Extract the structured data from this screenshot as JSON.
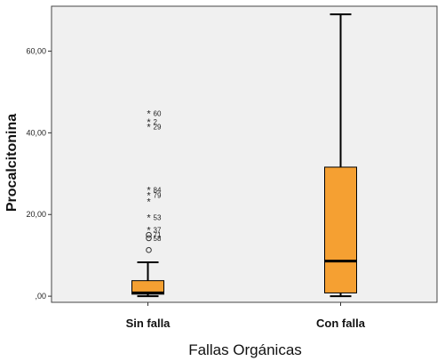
{
  "chart_data": {
    "type": "box",
    "xlabel": "Fallas Orgánicas",
    "ylabel": "Procalcitonina",
    "ylim": [
      -1.5,
      71
    ],
    "y_ticks": [
      {
        "value": 0,
        "label": ",00"
      },
      {
        "value": 20,
        "label": "20,00"
      },
      {
        "value": 40,
        "label": "40,00"
      },
      {
        "value": 60,
        "label": "60,00"
      }
    ],
    "box_color": "#f5a032",
    "plot_background": "#f0f0f0",
    "categories": [
      "Sin falla",
      "Con falla"
    ],
    "boxes": [
      {
        "category": "Sin falla",
        "whisker_low": 0.0,
        "q1": 0.5,
        "median": 0.8,
        "q3": 3.8,
        "whisker_high": 8.3,
        "outliers": [
          {
            "value": 11.3,
            "marker": "circle",
            "label": ""
          },
          {
            "value": 14.2,
            "marker": "circle",
            "label": "58"
          },
          {
            "value": 15.0,
            "marker": "circle",
            "label": "71"
          },
          {
            "value": 16.2,
            "marker": "star",
            "label": "37"
          },
          {
            "value": 19.3,
            "marker": "star",
            "label": "53"
          },
          {
            "value": 23.2,
            "marker": "star",
            "label": ""
          },
          {
            "value": 24.7,
            "marker": "star",
            "label": "79"
          },
          {
            "value": 26.0,
            "marker": "star",
            "label": "84"
          },
          {
            "value": 41.5,
            "marker": "star",
            "label": "29"
          },
          {
            "value": 42.7,
            "marker": "star",
            "label": "2"
          },
          {
            "value": 44.8,
            "marker": "star",
            "label": "60"
          }
        ]
      },
      {
        "category": "Con falla",
        "whisker_low": 0.0,
        "q1": 0.8,
        "median": 8.6,
        "q3": 31.6,
        "whisker_high": 69.0,
        "outliers": []
      }
    ]
  }
}
